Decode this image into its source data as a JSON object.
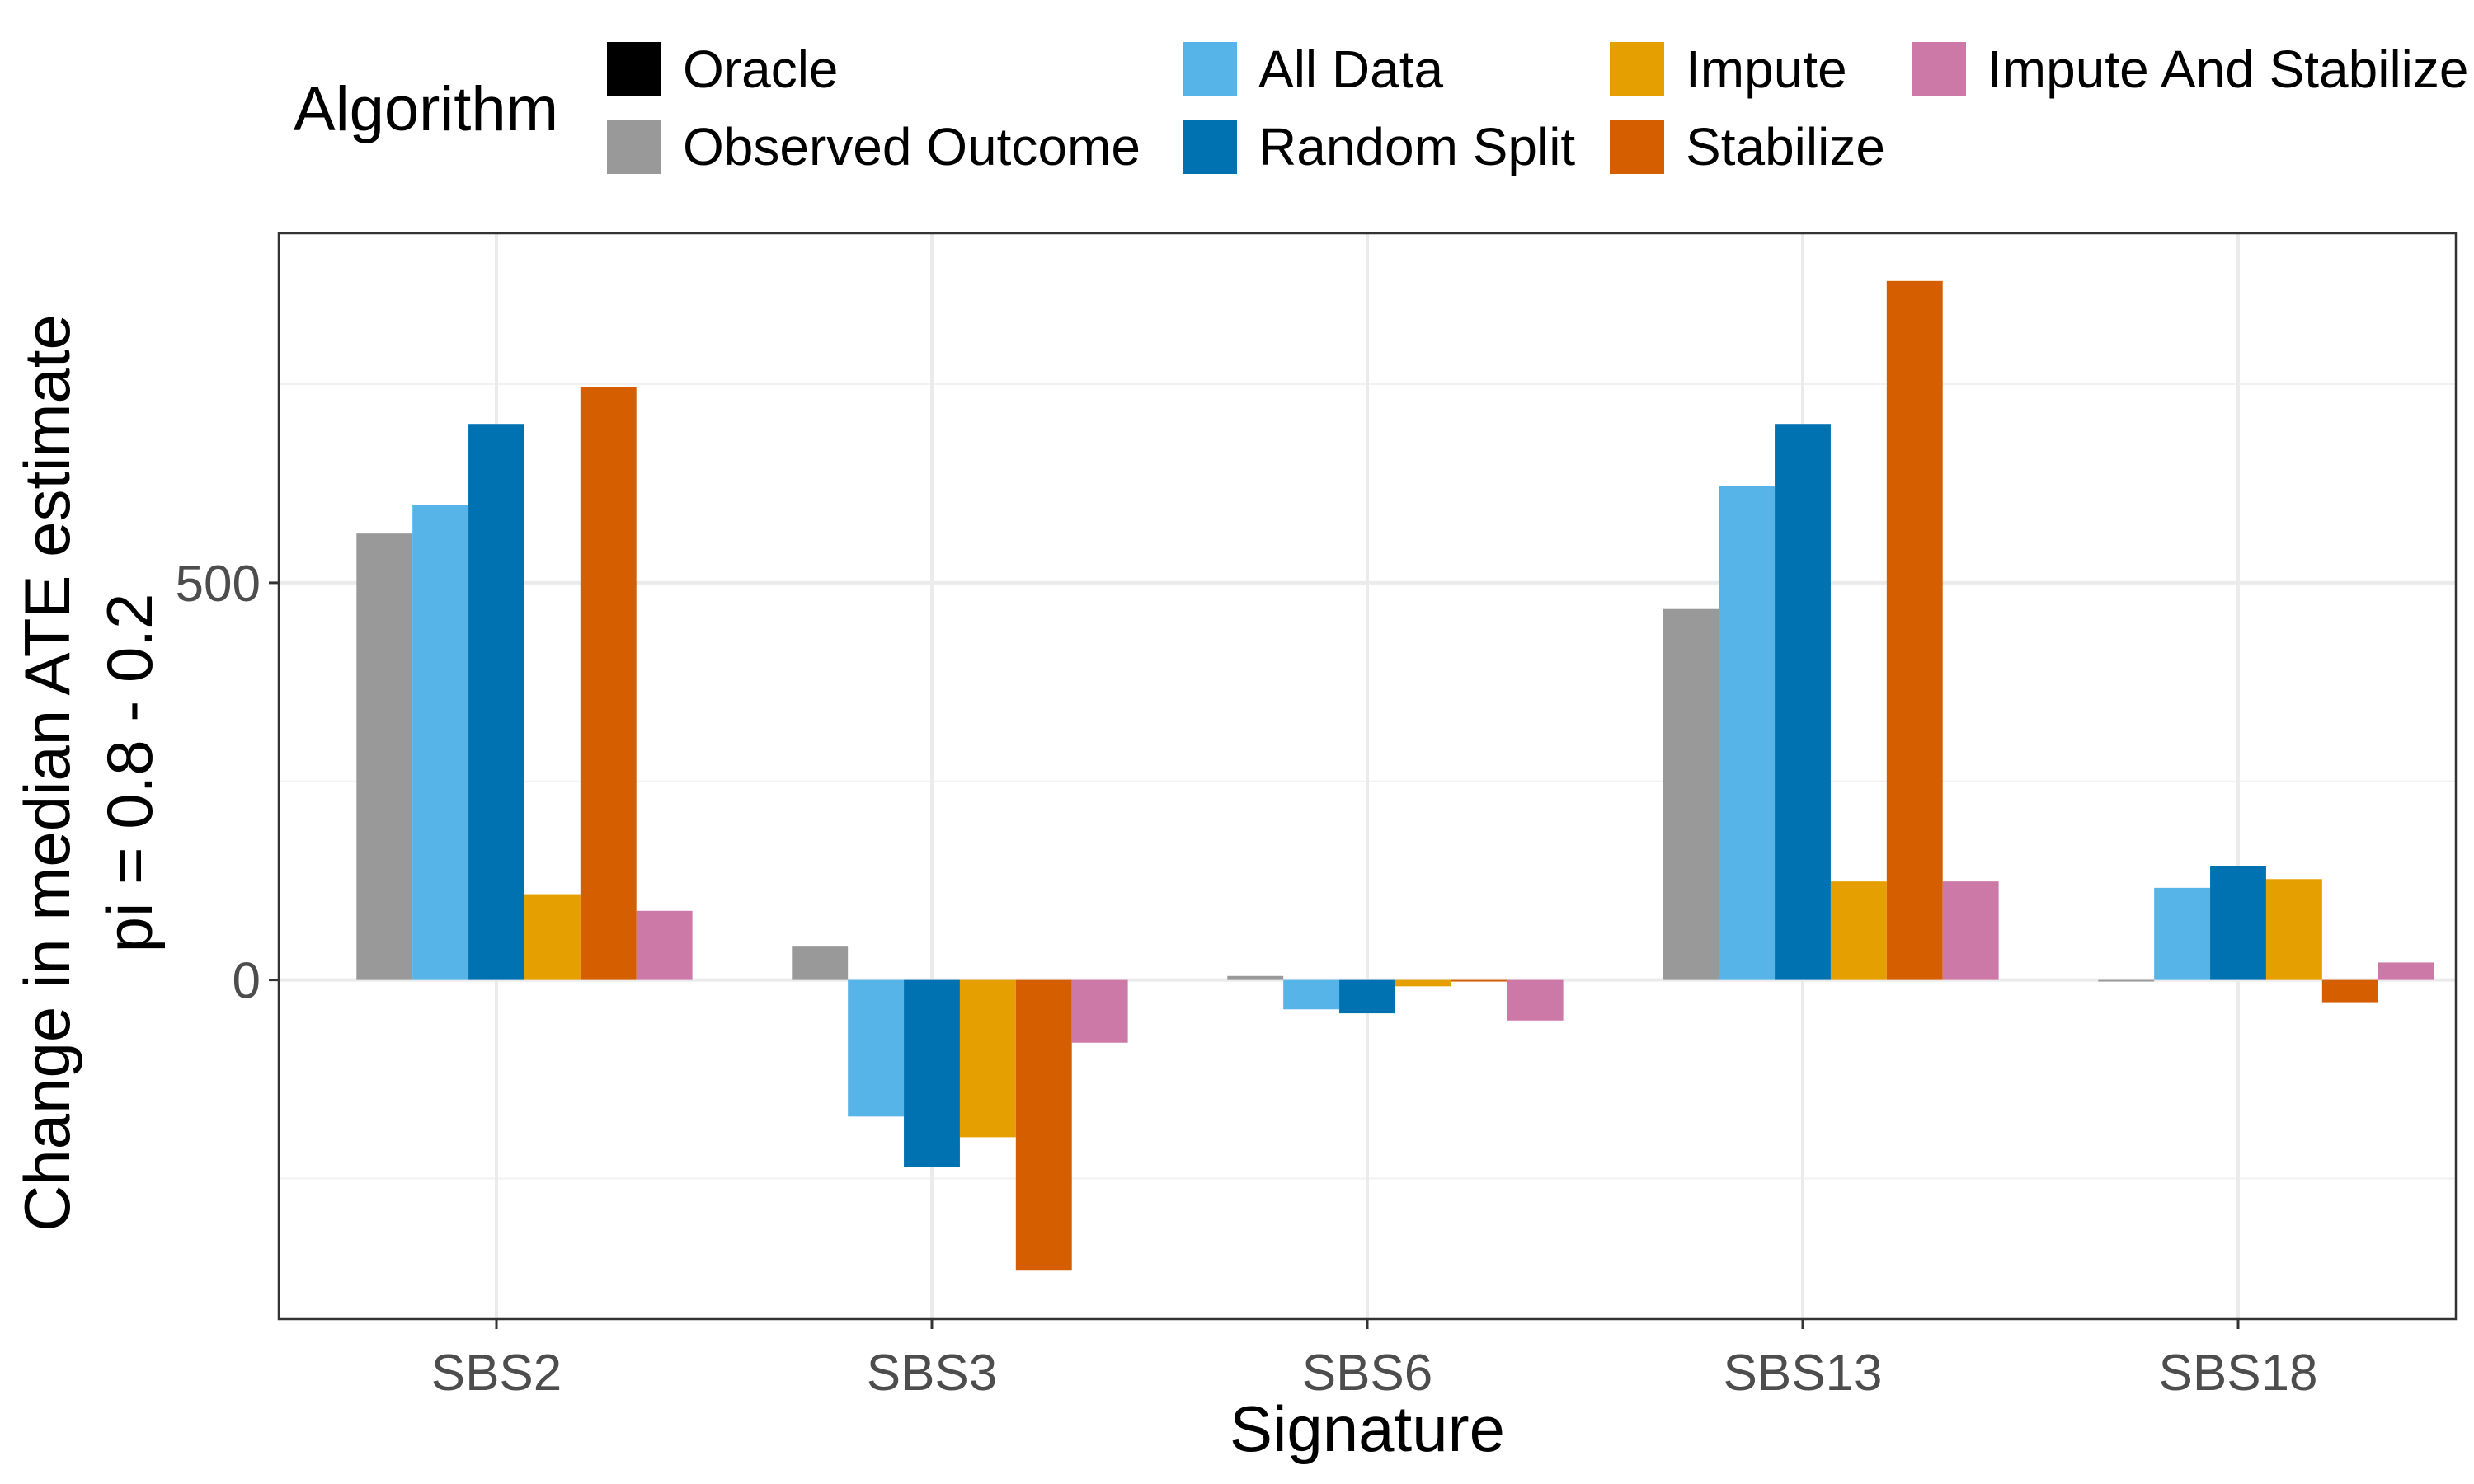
{
  "legend": {
    "title": "Algorithm",
    "items": [
      {
        "label": "Oracle",
        "color": "#000000"
      },
      {
        "label": "Observed Outcome",
        "color": "#999999"
      },
      {
        "label": "All Data",
        "color": "#56B4E9"
      },
      {
        "label": "Random Split",
        "color": "#0072B2"
      },
      {
        "label": "Impute",
        "color": "#E69F00"
      },
      {
        "label": "Stabilize",
        "color": "#D55E00"
      },
      {
        "label": "Impute And Stabilize",
        "color": "#CC79A7"
      }
    ]
  },
  "chart_data": {
    "type": "bar",
    "title": "",
    "xlabel": "Signature",
    "ylabel": [
      "Change in median ATE estimate",
      "pi = 0.8 - 0.2"
    ],
    "categories": [
      "SBS2",
      "SBS3",
      "SBS6",
      "SBS13",
      "SBS18"
    ],
    "ylim": [
      -427,
      940
    ],
    "y_ticks": [
      0,
      500
    ],
    "y_minor_ticks": [
      -250,
      250,
      750
    ],
    "grid": true,
    "legend_position": "top",
    "series": [
      {
        "name": "Oracle",
        "color": "#000000",
        "values": [
          0,
          0,
          0,
          0,
          0
        ]
      },
      {
        "name": "Observed Outcome",
        "color": "#999999",
        "values": [
          562,
          42,
          5,
          467,
          -2
        ]
      },
      {
        "name": "All Data",
        "color": "#56B4E9",
        "values": [
          598,
          -172,
          -37,
          622,
          116
        ]
      },
      {
        "name": "Random Split",
        "color": "#0072B2",
        "values": [
          700,
          -236,
          -42,
          700,
          143
        ]
      },
      {
        "name": "Impute",
        "color": "#E69F00",
        "values": [
          108,
          -198,
          -8,
          124,
          127
        ]
      },
      {
        "name": "Stabilize",
        "color": "#D55E00",
        "values": [
          746,
          -366,
          -2,
          880,
          -28
        ]
      },
      {
        "name": "Impute And Stabilize",
        "color": "#CC79A7",
        "values": [
          87,
          -79,
          -51,
          124,
          22
        ]
      }
    ]
  }
}
